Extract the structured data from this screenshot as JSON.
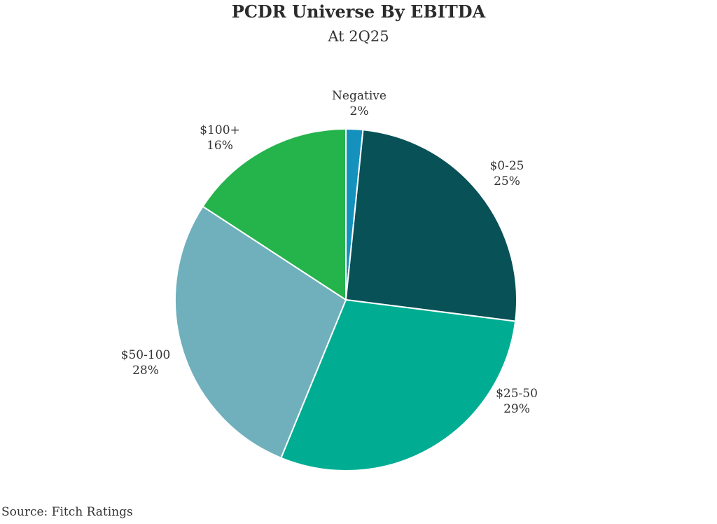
{
  "header": {
    "title": "PCDR Universe By EBITDA",
    "subtitle": "At 2Q25"
  },
  "chart_data": {
    "type": "pie",
    "title": "PCDR Universe By EBITDA",
    "subtitle": "At 2Q25",
    "start_angle_deg": 0,
    "direction": "clockwise",
    "slices": [
      {
        "label": "Negative",
        "value": 1.6,
        "display": "2%",
        "color": "#1591bd"
      },
      {
        "label": "$0-25",
        "value": 25.4,
        "display": "25%",
        "color": "#085157"
      },
      {
        "label": "$25-50",
        "value": 29.2,
        "display": "29%",
        "color": "#00ad93"
      },
      {
        "label": "$50-100",
        "value": 28.0,
        "display": "28%",
        "color": "#6fb0bc"
      },
      {
        "label": "$100+",
        "value": 15.8,
        "display": "16%",
        "color": "#25b34b"
      }
    ]
  },
  "footer": {
    "source": "Source: Fitch Ratings"
  }
}
